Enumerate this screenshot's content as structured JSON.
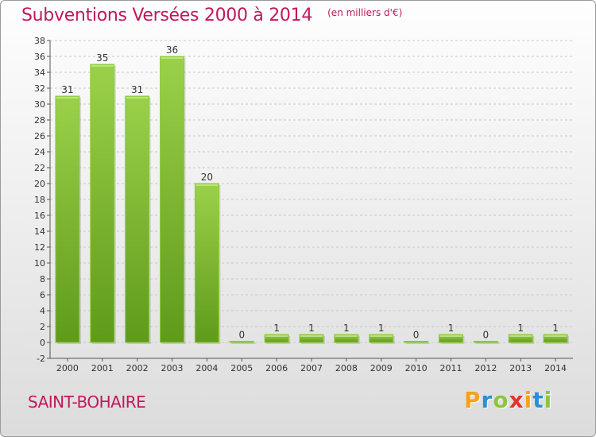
{
  "chart_data": {
    "type": "bar",
    "title": "Subventions Versées 2000 à 2014",
    "unit_note": "(en milliers d'€)",
    "categories": [
      "2000",
      "2001",
      "2002",
      "2003",
      "2004",
      "2005",
      "2006",
      "2007",
      "2008",
      "2009",
      "2010",
      "2011",
      "2012",
      "2013",
      "2014"
    ],
    "values": [
      31,
      35,
      31,
      36,
      20,
      0,
      1,
      1,
      1,
      1,
      0,
      1,
      0,
      1,
      1
    ],
    "ylim": [
      -2,
      38
    ],
    "yticks": [
      -2,
      0,
      2,
      4,
      6,
      8,
      10,
      12,
      14,
      16,
      18,
      20,
      22,
      24,
      26,
      28,
      30,
      32,
      34,
      36,
      38
    ],
    "grid": "dashed-horizontal",
    "bar_color": "#7fbf2f",
    "bar_color_dark": "#5f9a1a"
  },
  "footer": {
    "commune": "SAINT-BOHAIRE",
    "brand_letters": [
      "P",
      "r",
      "o",
      "x",
      "i",
      "t",
      "i"
    ],
    "brand_colors": [
      "#f7a21b",
      "#2a8fd6",
      "#8cc63f",
      "#e2342d",
      "#f7a21b",
      "#2a8fd6",
      "#8cc63f"
    ]
  }
}
